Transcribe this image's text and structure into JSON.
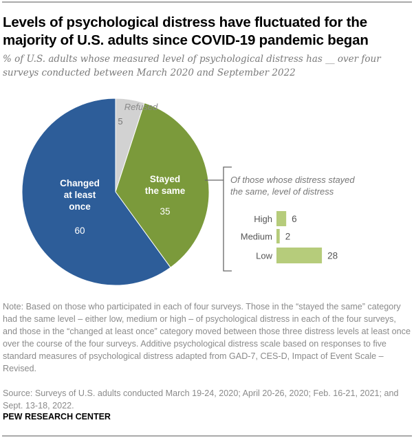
{
  "header": {
    "title": "Levels of psychological distress have fluctuated for the majority of U.S. adults since COVID-19 pandemic began",
    "subtitle": "% of U.S. adults whose measured level of psychological distress has __ over four surveys conducted between March 2020 and September 2022"
  },
  "chart_data": [
    {
      "type": "pie",
      "slices": [
        {
          "label": "Refused",
          "value": 5,
          "color": "#d2d2d2"
        },
        {
          "label": "Stayed the same",
          "value": 35,
          "color": "#7b9a3b"
        },
        {
          "label": "Changed at least once",
          "value": 60,
          "color": "#2d5d99"
        }
      ]
    },
    {
      "type": "bar",
      "orientation": "horizontal",
      "title": "Of those whose distress stayed the same, level of distress",
      "categories": [
        "High",
        "Medium",
        "Low"
      ],
      "values": [
        6,
        2,
        28
      ],
      "color": "#b6cc7b"
    }
  ],
  "labels": {
    "refused": "Refused",
    "stayed_line1": "Stayed",
    "stayed_line2": "the same",
    "changed_line1": "Changed",
    "changed_line2": "at least",
    "changed_line3": "once"
  },
  "footer": {
    "note": "Note: Based on those who participated in each of four surveys. Those in the “stayed the same” category had the same level – either low, medium or high – of psychological distress in each of the four surveys, and those in the “changed at least once” category moved between those three distress levels at least once over the course of the four surveys. Additive psychological distress scale based on responses to five standard measures of psychological distress adapted from GAD-7, CES-D, Impact of Event Scale – Revised.",
    "source": "Source: Surveys of U.S. adults conducted March 19-24, 2020; April 20-26, 2020; Feb. 16-21, 2021; and Sept. 13-18, 2022.",
    "brand": "PEW RESEARCH CENTER"
  }
}
